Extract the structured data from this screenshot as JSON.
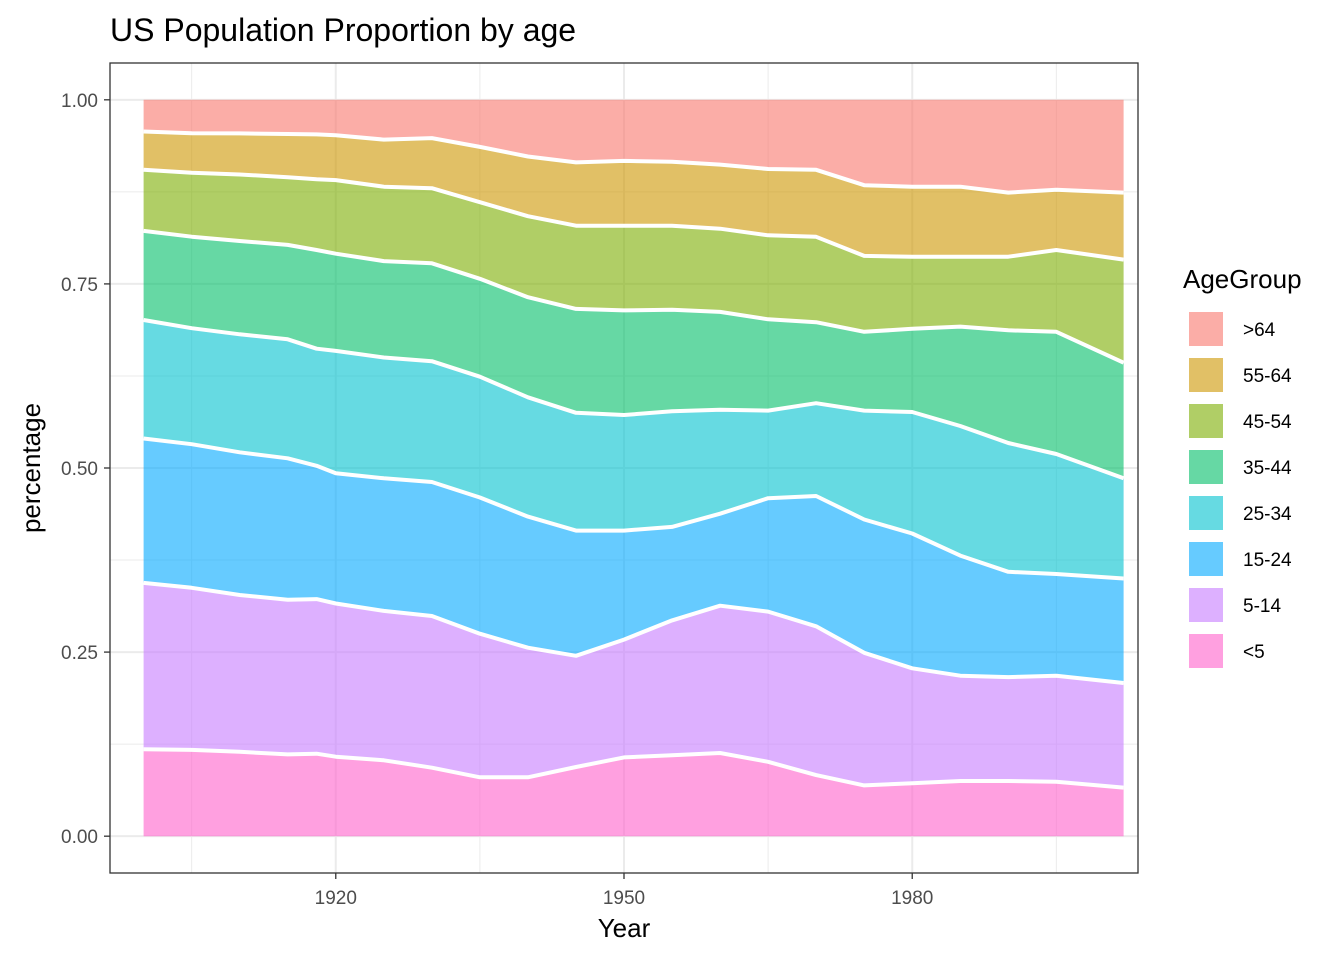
{
  "chart_data": {
    "type": "area",
    "stacked": true,
    "normalized": true,
    "title": "US Population Proportion by age",
    "xlabel": "Year",
    "ylabel": "percentage",
    "xlim": [
      1896.5,
      2003.5
    ],
    "ylim": [
      -0.05,
      1.05
    ],
    "x_ticks": [
      1920,
      1950,
      1980
    ],
    "y_ticks": [
      0,
      0.25,
      0.5,
      0.75,
      1.0
    ],
    "y_tick_labels": [
      "0.00",
      "0.25",
      "0.50",
      "0.75",
      "1.00"
    ],
    "grid": true,
    "legend_title": "AgeGroup",
    "legend_position": "right",
    "legend_order": [
      ">64",
      "55-64",
      "45-54",
      "35-44",
      "25-34",
      "15-24",
      "5-14",
      "<5"
    ],
    "fill_opacity": 0.6,
    "outline_color": "#ffffff",
    "x": [
      1900,
      1905,
      1910,
      1915,
      1918,
      1920,
      1925,
      1930,
      1935,
      1940,
      1945,
      1950,
      1955,
      1960,
      1965,
      1970,
      1975,
      1980,
      1985,
      1990,
      1995,
      2002
    ],
    "series": [
      {
        "name": "<5",
        "color": "#FF61CC",
        "values": [
          0.118,
          0.116,
          0.113,
          0.11,
          0.112,
          0.108,
          0.103,
          0.093,
          0.08,
          0.08,
          0.094,
          0.107,
          0.11,
          0.113,
          0.101,
          0.083,
          0.069,
          0.072,
          0.075,
          0.075,
          0.074,
          0.066
        ]
      },
      {
        "name": "5-14",
        "color": "#C77CFF",
        "values": [
          0.226,
          0.218,
          0.21,
          0.208,
          0.21,
          0.208,
          0.203,
          0.206,
          0.195,
          0.176,
          0.151,
          0.16,
          0.183,
          0.2,
          0.204,
          0.202,
          0.18,
          0.156,
          0.143,
          0.141,
          0.144,
          0.142
        ]
      },
      {
        "name": "15-24",
        "color": "#00A9FF",
        "values": [
          0.196,
          0.193,
          0.191,
          0.19,
          0.181,
          0.177,
          0.18,
          0.182,
          0.185,
          0.178,
          0.17,
          0.148,
          0.127,
          0.125,
          0.154,
          0.177,
          0.181,
          0.183,
          0.163,
          0.143,
          0.138,
          0.142
        ]
      },
      {
        "name": "25-34",
        "color": "#00C1CE",
        "values": [
          0.161,
          0.156,
          0.158,
          0.16,
          0.159,
          0.166,
          0.164,
          0.164,
          0.164,
          0.162,
          0.16,
          0.157,
          0.157,
          0.141,
          0.119,
          0.126,
          0.148,
          0.165,
          0.176,
          0.175,
          0.163,
          0.136
        ]
      },
      {
        "name": "35-44",
        "color": "#00BE67",
        "values": [
          0.121,
          0.123,
          0.125,
          0.127,
          0.134,
          0.132,
          0.131,
          0.133,
          0.133,
          0.136,
          0.141,
          0.142,
          0.138,
          0.133,
          0.124,
          0.11,
          0.107,
          0.113,
          0.135,
          0.153,
          0.166,
          0.157
        ]
      },
      {
        "name": "45-54",
        "color": "#7CAE00",
        "values": [
          0.083,
          0.086,
          0.089,
          0.091,
          0.096,
          0.1,
          0.101,
          0.102,
          0.104,
          0.11,
          0.113,
          0.115,
          0.114,
          0.113,
          0.114,
          0.116,
          0.103,
          0.098,
          0.095,
          0.1,
          0.111,
          0.14
        ]
      },
      {
        "name": "55-64",
        "color": "#CD9600",
        "values": [
          0.052,
          0.053,
          0.055,
          0.058,
          0.061,
          0.061,
          0.064,
          0.068,
          0.075,
          0.081,
          0.086,
          0.088,
          0.087,
          0.087,
          0.09,
          0.091,
          0.096,
          0.095,
          0.095,
          0.087,
          0.082,
          0.091
        ]
      },
      {
        "name": ">64",
        "color": "#F8766D",
        "values": [
          0.043,
          0.045,
          0.045,
          0.046,
          0.047,
          0.048,
          0.054,
          0.052,
          0.064,
          0.077,
          0.085,
          0.083,
          0.084,
          0.088,
          0.094,
          0.095,
          0.116,
          0.118,
          0.118,
          0.126,
          0.122,
          0.126
        ]
      }
    ]
  }
}
